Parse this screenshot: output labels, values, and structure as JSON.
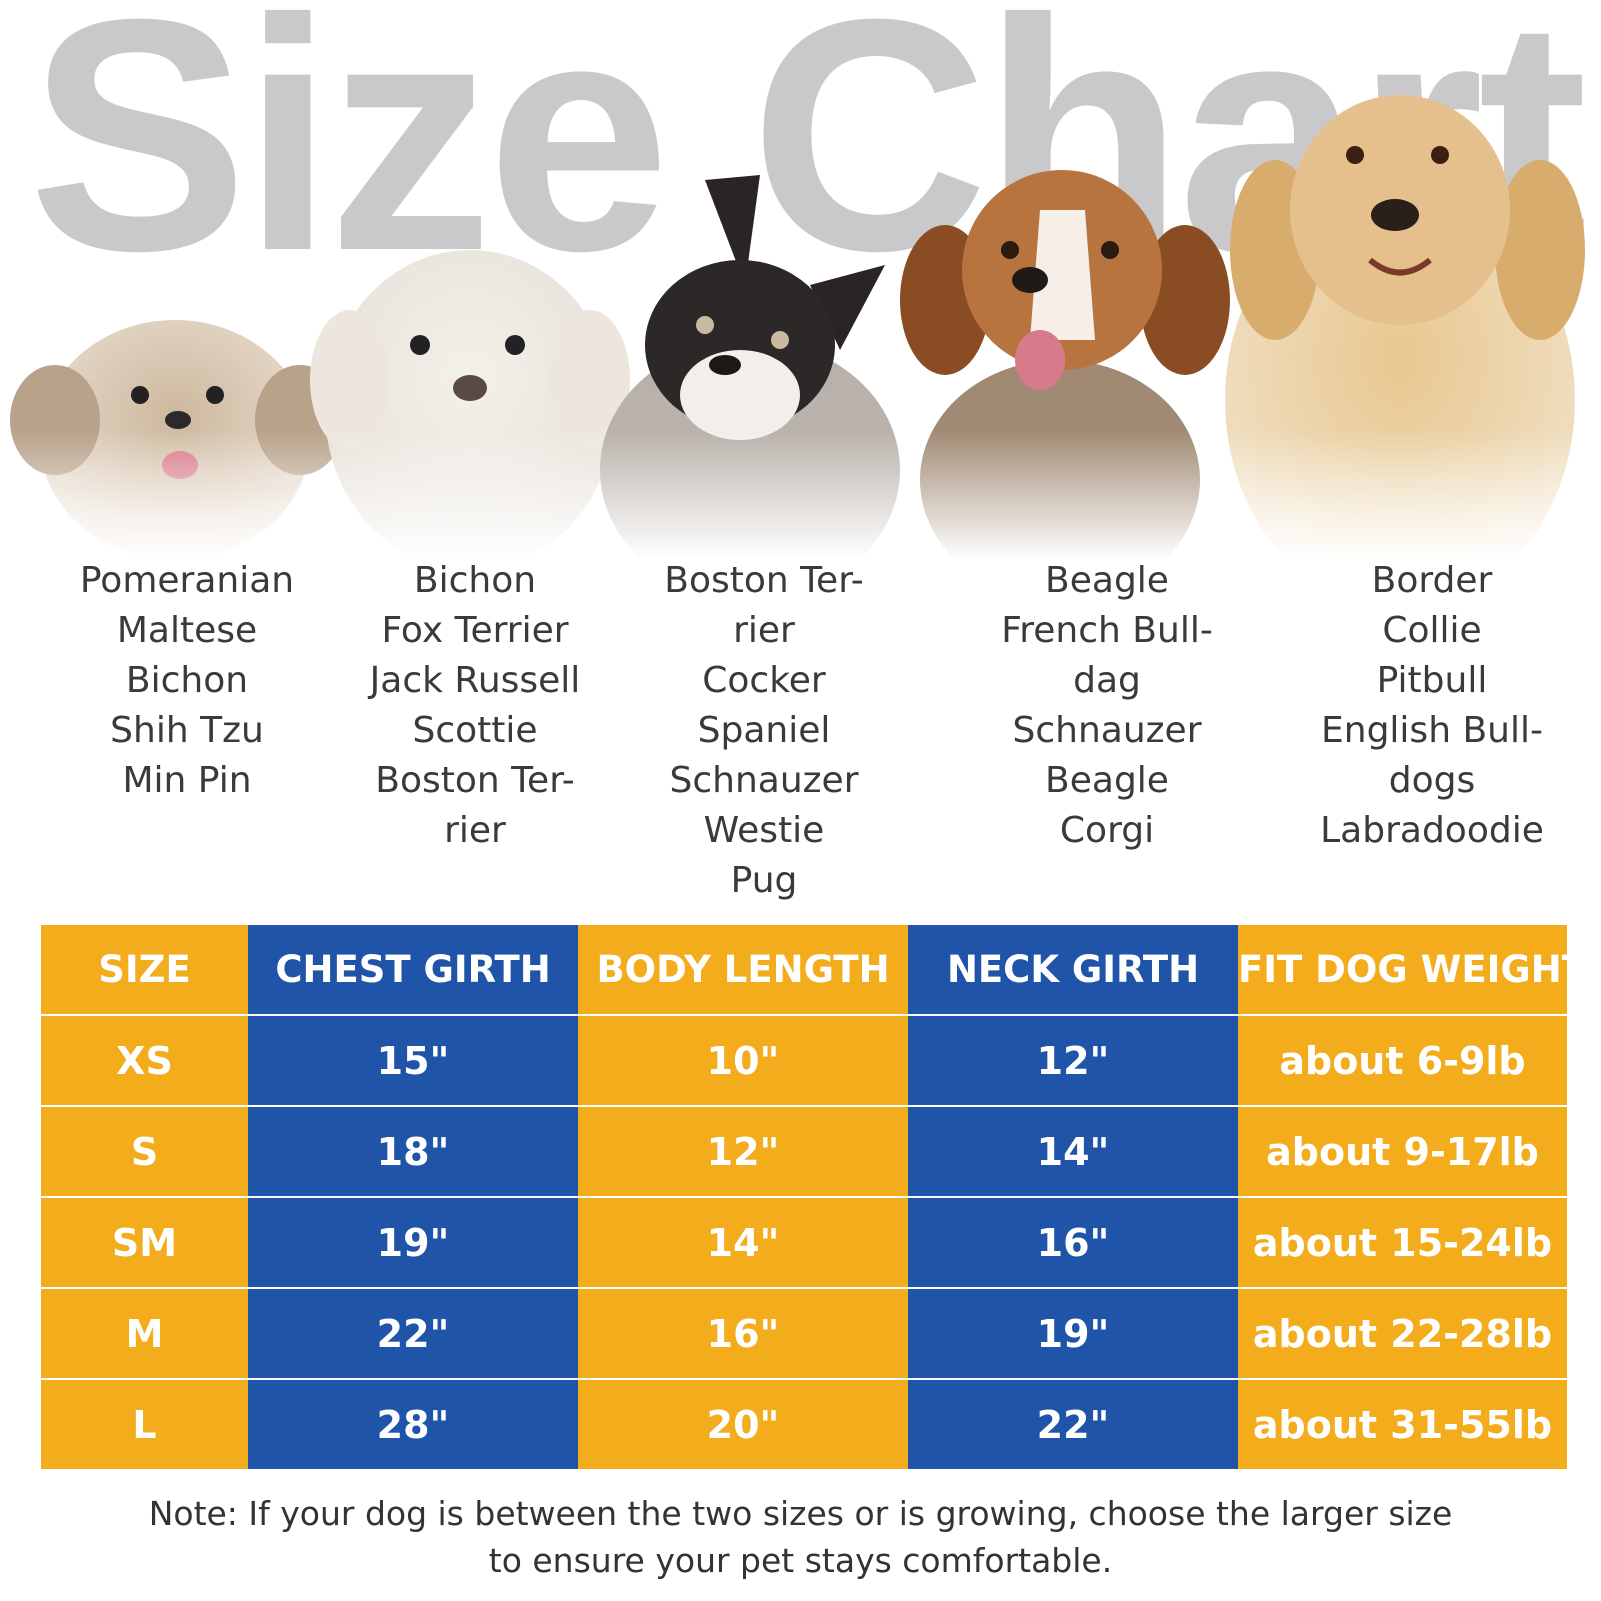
{
  "title": "Size Chart",
  "breed_columns": [
    {
      "name": "Pomeranian",
      "lines": [
        "Pomeranian",
        "Maltese",
        "Bichon",
        "Shih Tzu",
        "Min Pin"
      ]
    },
    {
      "name": "Bichon",
      "lines": [
        "Bichon",
        "Fox Terrier",
        "Jack Russell",
        "Scottie",
        "Boston Ter-",
        "rier"
      ]
    },
    {
      "name": "Boston Terrier",
      "lines": [
        "Boston Ter-",
        "rier",
        "Cocker",
        "Spaniel",
        "Schnauzer",
        "Westie",
        "Pug"
      ]
    },
    {
      "name": "Beagle",
      "lines": [
        "Beagle",
        "French Bull-",
        "dag",
        "Schnauzer",
        "Beagle",
        "Corgi"
      ]
    },
    {
      "name": "Border Collie",
      "lines": [
        "Border",
        "Collie",
        "Pitbull",
        "English Bull-",
        "dogs",
        "Labradoodie"
      ]
    }
  ],
  "table": {
    "headers": [
      "SIZE",
      "CHEST GIRTH",
      "BODY LENGTH",
      "NECK GIRTH",
      "FIT DOG WEIGHT"
    ],
    "rows": [
      [
        "XS",
        "15\"",
        "10\"",
        "12\"",
        "about 6-9lb"
      ],
      [
        "S",
        "18\"",
        "12\"",
        "14\"",
        "about 9-17lb"
      ],
      [
        "SM",
        "19\"",
        "14\"",
        "16\"",
        "about 15-24lb"
      ],
      [
        "M",
        "22\"",
        "16\"",
        "19\"",
        "about 22-28lb"
      ],
      [
        "L",
        "28\"",
        "20\"",
        "22\"",
        "about 31-55lb"
      ]
    ]
  },
  "note": {
    "line1": "Note: If your dog is between the two sizes or is growing, choose the larger size",
    "line2": "to ensure your pet stays comfortable."
  },
  "colors": {
    "yellow": "#f2ac1c",
    "blue": "#1f54a8",
    "title_gray": "#c9c9cc"
  }
}
